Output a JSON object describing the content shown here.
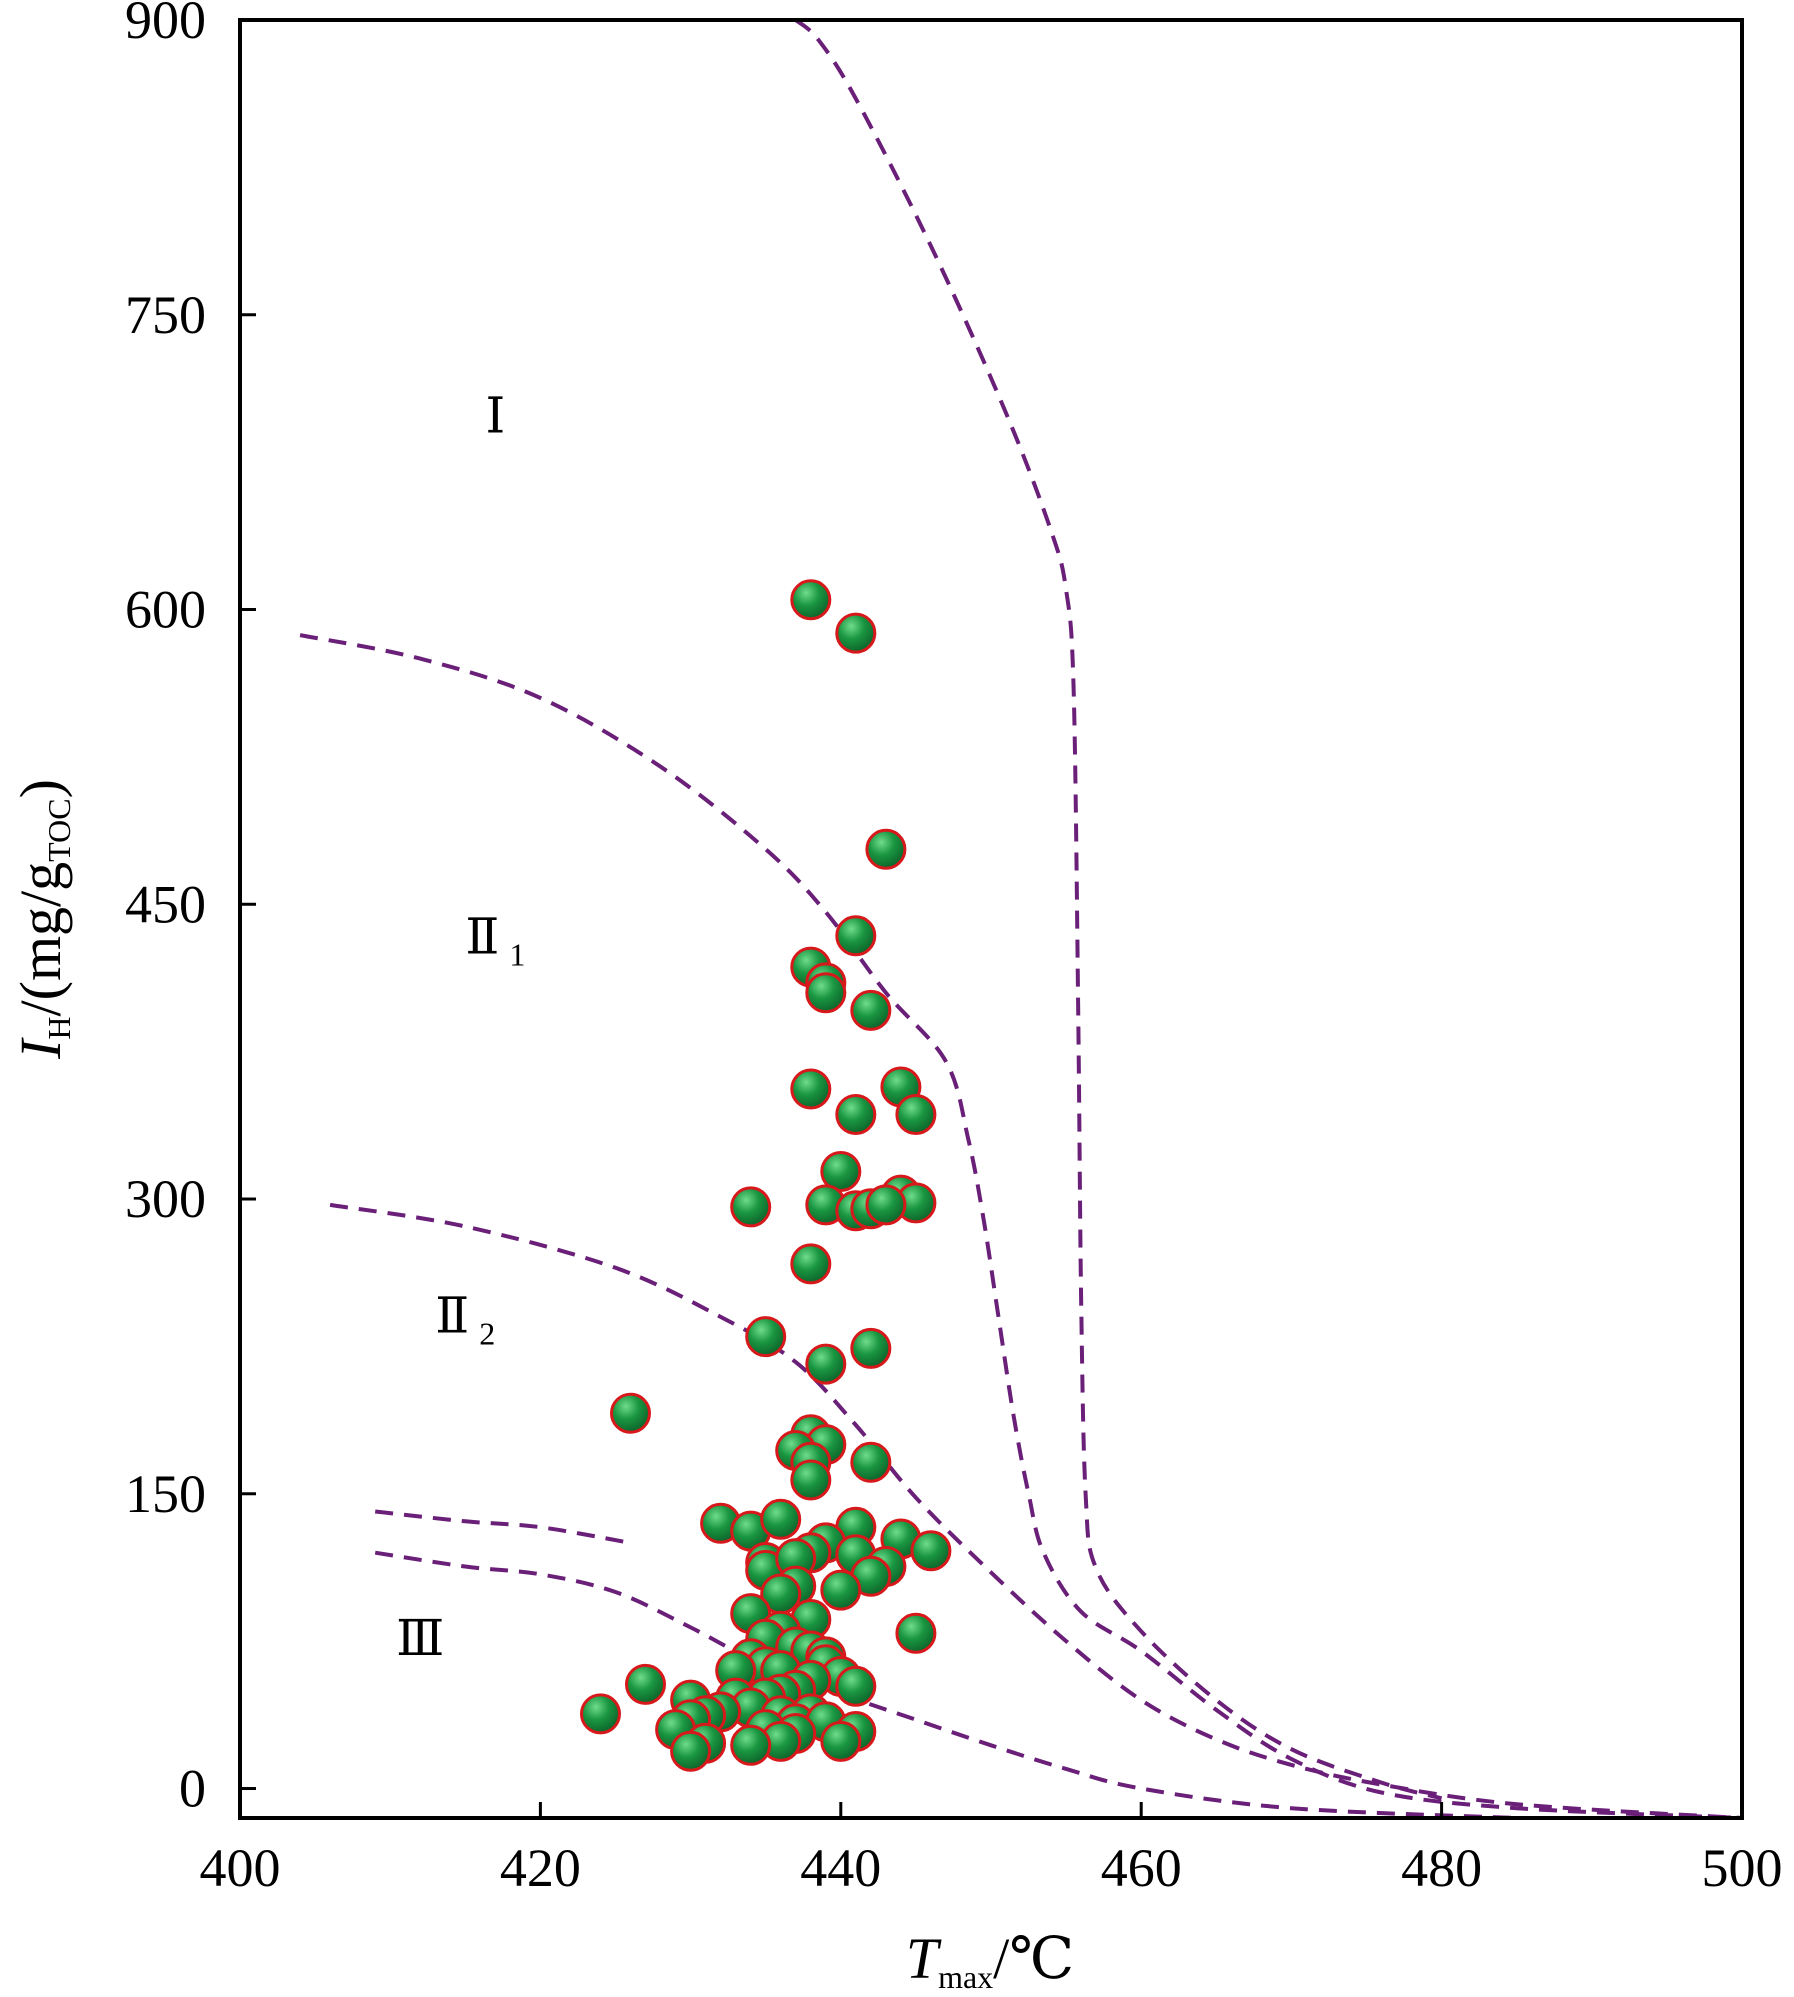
{
  "chart_data": {
    "type": "scatter",
    "title": "",
    "x_axis": {
      "var": "T",
      "var_sub": "max",
      "unit": "/℃",
      "range": [
        400,
        500
      ],
      "ticks": [
        "400",
        "420",
        "440",
        "460",
        "480",
        "500"
      ]
    },
    "y_axis": {
      "var": "I",
      "var_sub": "H",
      "unit_prefix": "/(mg/g",
      "unit_sub": "TOC",
      "unit_suffix": ")",
      "range": [
        -15,
        900
      ],
      "ticks": [
        "0",
        "150",
        "300",
        "450",
        "600",
        "750",
        "900"
      ]
    },
    "grid": false,
    "legend": "none",
    "marker": {
      "fill": "#1a9641",
      "stroke": "#d7191c"
    },
    "curve_color": "#6a1f78",
    "regions": [
      {
        "main": "Ⅰ",
        "sub": "",
        "x": 417,
        "y": 690
      },
      {
        "main": "Ⅱ",
        "sub": "1",
        "x": 417,
        "y": 425
      },
      {
        "main": "Ⅱ",
        "sub": "2",
        "x": 415,
        "y": 232
      },
      {
        "main": "Ⅲ",
        "sub": "",
        "x": 412,
        "y": 68
      }
    ],
    "boundaries": [
      {
        "name": "boundary-1",
        "points": [
          [
            437,
            900
          ],
          [
            438.5,
            890
          ],
          [
            441,
            860
          ],
          [
            446,
            785
          ],
          [
            451,
            700
          ],
          [
            454,
            640
          ],
          [
            455,
            610
          ],
          [
            455.5,
            560
          ],
          [
            455.8,
            400
          ],
          [
            456,
            250
          ],
          [
            456.3,
            150
          ],
          [
            457,
            112
          ],
          [
            460,
            80
          ],
          [
            465,
            45
          ],
          [
            470,
            20
          ],
          [
            476,
            3
          ],
          [
            480,
            -5
          ]
        ]
      },
      {
        "name": "boundary-2",
        "points": [
          [
            404,
            587
          ],
          [
            412,
            575
          ],
          [
            420,
            555
          ],
          [
            428,
            520
          ],
          [
            435,
            478
          ],
          [
            439,
            446
          ],
          [
            443,
            405
          ],
          [
            447,
            370
          ],
          [
            448.5,
            330
          ],
          [
            449.5,
            290
          ],
          [
            450.5,
            240
          ],
          [
            451.5,
            190
          ],
          [
            452.5,
            150
          ],
          [
            453.5,
            120
          ],
          [
            456,
            90
          ],
          [
            460,
            70
          ],
          [
            465,
            40
          ],
          [
            470,
            15
          ],
          [
            476,
            -2
          ],
          [
            485,
            -10
          ],
          [
            500,
            -15
          ]
        ]
      },
      {
        "name": "boundary-3",
        "points": [
          [
            406,
            297
          ],
          [
            415,
            286
          ],
          [
            425,
            265
          ],
          [
            432,
            240
          ],
          [
            437,
            217
          ],
          [
            441,
            185
          ],
          [
            445,
            148
          ],
          [
            450,
            110
          ],
          [
            455,
            75
          ],
          [
            460,
            45
          ],
          [
            465,
            25
          ],
          [
            470,
            12
          ],
          [
            476,
            2
          ],
          [
            485,
            -8
          ],
          [
            500,
            -15
          ]
        ]
      },
      {
        "name": "boundary-4",
        "points": [
          [
            409,
            141
          ],
          [
            415,
            136
          ],
          [
            420,
            133
          ],
          [
            426,
            125
          ]
        ]
      },
      {
        "name": "boundary-5",
        "points": [
          [
            409,
            120
          ],
          [
            415,
            113
          ],
          [
            420,
            109
          ],
          [
            425,
            100
          ],
          [
            430,
            82
          ],
          [
            435,
            62
          ],
          [
            440,
            48
          ],
          [
            445,
            35
          ],
          [
            450,
            22
          ],
          [
            455,
            10
          ],
          [
            460,
            0
          ],
          [
            470,
            -10
          ],
          [
            485,
            -15
          ]
        ]
      }
    ],
    "series": [
      {
        "points": [
          [
            438,
            605
          ],
          [
            441,
            588
          ],
          [
            443,
            478
          ],
          [
            441,
            434
          ],
          [
            438,
            418
          ],
          [
            439,
            410
          ],
          [
            439,
            405
          ],
          [
            442,
            396
          ],
          [
            438,
            356
          ],
          [
            444,
            357
          ],
          [
            441,
            343
          ],
          [
            445,
            343
          ],
          [
            440,
            314
          ],
          [
            444,
            302
          ],
          [
            445,
            298
          ],
          [
            434,
            296
          ],
          [
            439,
            297
          ],
          [
            441,
            294
          ],
          [
            442,
            295
          ],
          [
            443,
            297
          ],
          [
            438,
            267
          ],
          [
            435,
            230
          ],
          [
            442,
            224
          ],
          [
            439,
            216
          ],
          [
            426,
            191
          ],
          [
            438,
            180
          ],
          [
            439,
            175
          ],
          [
            437,
            172
          ],
          [
            438,
            166
          ],
          [
            442,
            166
          ],
          [
            438,
            157
          ],
          [
            432,
            135
          ],
          [
            434,
            131
          ],
          [
            436,
            137
          ],
          [
            441,
            133
          ],
          [
            444,
            127
          ],
          [
            446,
            121
          ],
          [
            439,
            125
          ],
          [
            438,
            120
          ],
          [
            435,
            115
          ],
          [
            435,
            111
          ],
          [
            437,
            117
          ],
          [
            441,
            119
          ],
          [
            443,
            113
          ],
          [
            442,
            108
          ],
          [
            440,
            101
          ],
          [
            437,
            103
          ],
          [
            436,
            99
          ],
          [
            434,
            89
          ],
          [
            438,
            86
          ],
          [
            436,
            80
          ],
          [
            435,
            76
          ],
          [
            437,
            72
          ],
          [
            438,
            70
          ],
          [
            439,
            67
          ],
          [
            445,
            79
          ],
          [
            434,
            66
          ],
          [
            435,
            62
          ],
          [
            436,
            60
          ],
          [
            433,
            60
          ],
          [
            439,
            63
          ],
          [
            440,
            57
          ],
          [
            438,
            55
          ],
          [
            427,
            53
          ],
          [
            441,
            52
          ],
          [
            437,
            50
          ],
          [
            436,
            48
          ],
          [
            435,
            46
          ],
          [
            433,
            46
          ],
          [
            430,
            45
          ],
          [
            434,
            41
          ],
          [
            432,
            39
          ],
          [
            436,
            37
          ],
          [
            438,
            38
          ],
          [
            424,
            38
          ],
          [
            431,
            37
          ],
          [
            430,
            35
          ],
          [
            437,
            33
          ],
          [
            439,
            34
          ],
          [
            429,
            30
          ],
          [
            435,
            30
          ],
          [
            437,
            28
          ],
          [
            441,
            29
          ],
          [
            436,
            24
          ],
          [
            434,
            22
          ],
          [
            440,
            24
          ],
          [
            431,
            23
          ],
          [
            430,
            19
          ]
        ]
      }
    ]
  }
}
